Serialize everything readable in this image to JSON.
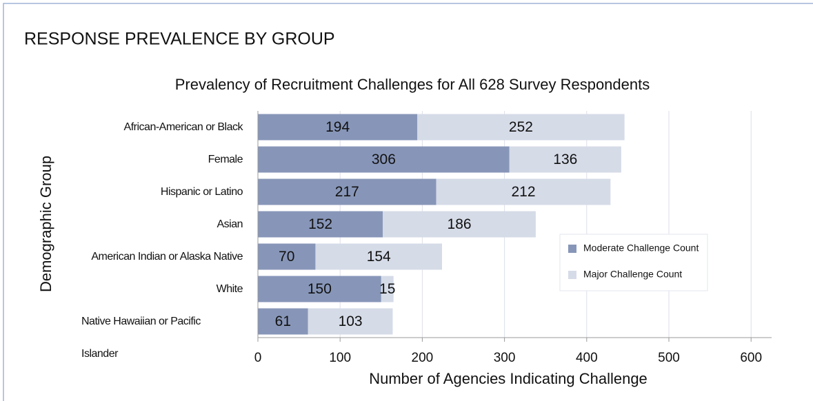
{
  "header": {
    "title": "RESPONSE PREVALENCE BY GROUP"
  },
  "chart_data": {
    "type": "stacked_barh",
    "title": "Prevalency of Recruitment Challenges for All 628 Survey Respondents",
    "x_label": "Number of Agencies Indicating Challenge",
    "y_label": "Demographic Group",
    "categories": [
      "African-American or Black",
      "Female",
      "Hispanic or Latino",
      "Asian",
      "American Indian or Alaska Native",
      "White",
      "Native Hawaiian or Pacific Islander"
    ],
    "series": [
      {
        "name": "Moderate Challenge Count",
        "color": "#8796b8",
        "values": [
          194,
          306,
          217,
          152,
          70,
          150,
          61
        ]
      },
      {
        "name": "Major Challenge Count",
        "color": "#d5dbe7",
        "values": [
          252,
          136,
          212,
          186,
          154,
          15,
          103
        ]
      }
    ],
    "xlim": [
      0,
      625
    ],
    "xticks": [
      0,
      100,
      200,
      300,
      400,
      500,
      600
    ],
    "grid": true,
    "legend": "right"
  }
}
